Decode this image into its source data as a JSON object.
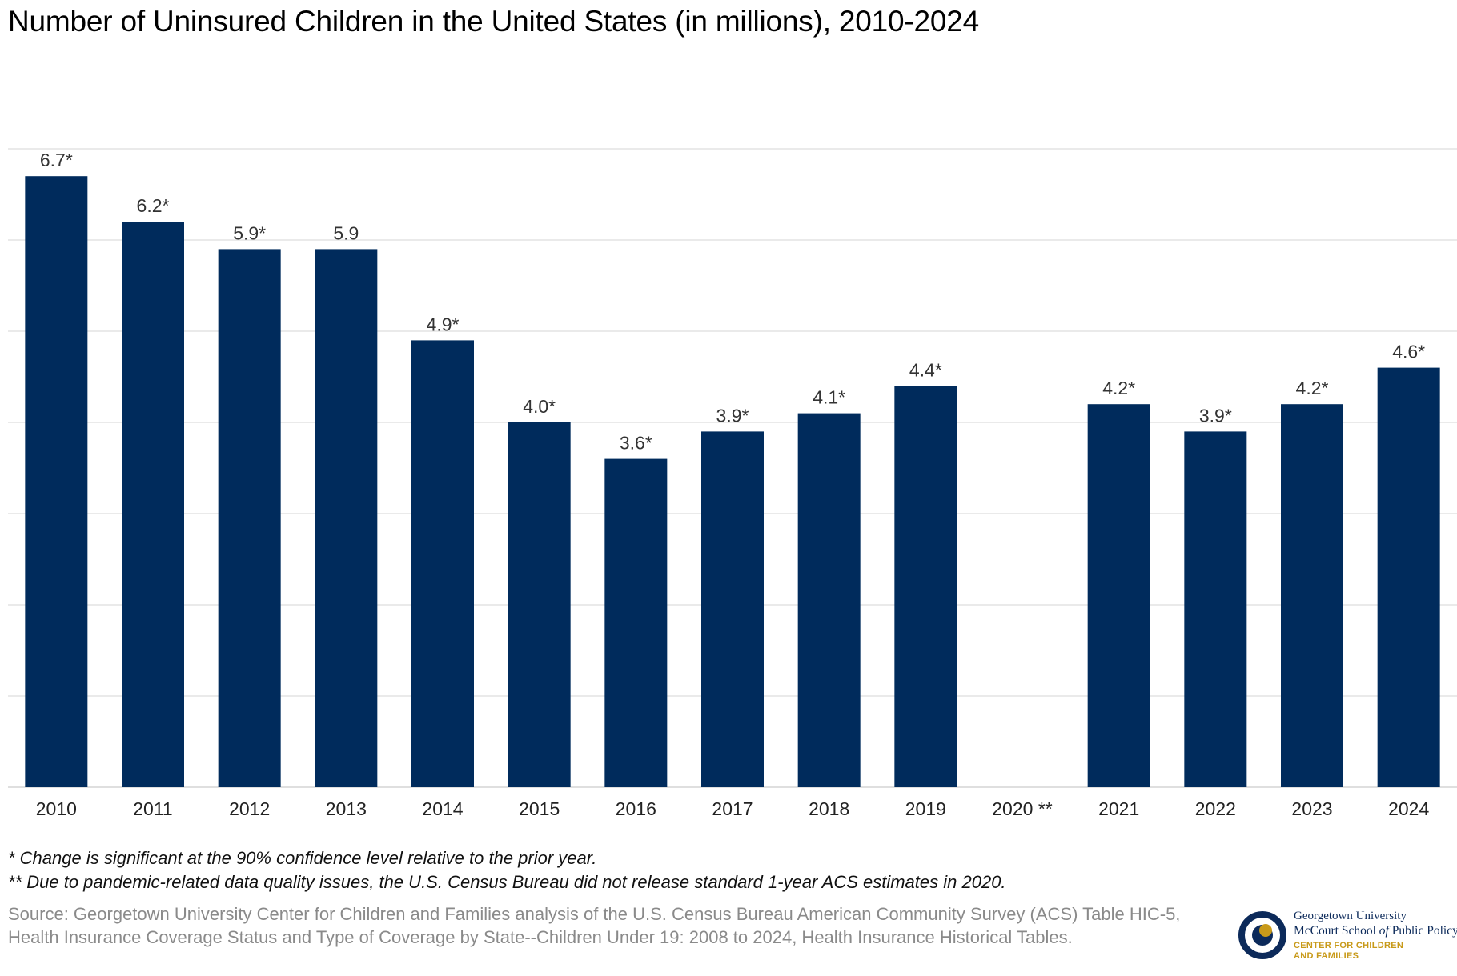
{
  "title": "Number of Uninsured Children in the United States (in millions), 2010-2024",
  "chart_data": {
    "type": "bar",
    "categories": [
      "2010",
      "2011",
      "2012",
      "2013",
      "2014",
      "2015",
      "2016",
      "2017",
      "2018",
      "2019",
      "2020",
      "2021",
      "2022",
      "2023",
      "2024"
    ],
    "category_labels": [
      "2010",
      "2011",
      "2012",
      "2013",
      "2014",
      "2015",
      "2016",
      "2017",
      "2018",
      "2019",
      "2020 **",
      "2021",
      "2022",
      "2023",
      "2024"
    ],
    "values": [
      6.7,
      6.2,
      5.9,
      5.9,
      4.9,
      4.0,
      3.6,
      3.9,
      4.1,
      4.4,
      null,
      4.2,
      3.9,
      4.2,
      4.6
    ],
    "data_labels": [
      "6.7*",
      "6.2*",
      "5.9*",
      "5.9",
      "4.9*",
      "4.0*",
      "3.6*",
      "3.9*",
      "4.1*",
      "4.4*",
      "",
      "4.2*",
      "3.9*",
      "4.2*",
      "4.6*"
    ],
    "ylim": [
      0,
      7
    ],
    "gridlines": [
      0,
      1,
      2,
      3,
      4,
      5,
      6,
      7
    ],
    "y_tick_labels": false,
    "grid": true,
    "legend": "none",
    "bar_color": "#002b5c",
    "grid_color": "#dddddd"
  },
  "notes": {
    "significance": "* Change is significant at the 90% confidence level relative to the prior year.",
    "pandemic": "** Due to pandemic-related data quality issues, the U.S. Census Bureau did not release standard 1-year ACS estimates in 2020."
  },
  "source": "Source: Georgetown University Center for Children and Families analysis of the U.S. Census Bureau American Community Survey (ACS) Table HIC-5, Health Insurance Coverage Status and Type of Coverage by State--Children Under 19: 2008 to 2024, Health Insurance Historical Tables.",
  "logo": {
    "line1": "Georgetown University",
    "line2_a": "McCourt School ",
    "line2_b": "of",
    "line2_c": " Public Policy",
    "line3": "CENTER FOR CHILDREN",
    "line4": "AND FAMILIES",
    "colors": {
      "navy": "#0c2a5a",
      "gold": "#c89a1a"
    }
  }
}
